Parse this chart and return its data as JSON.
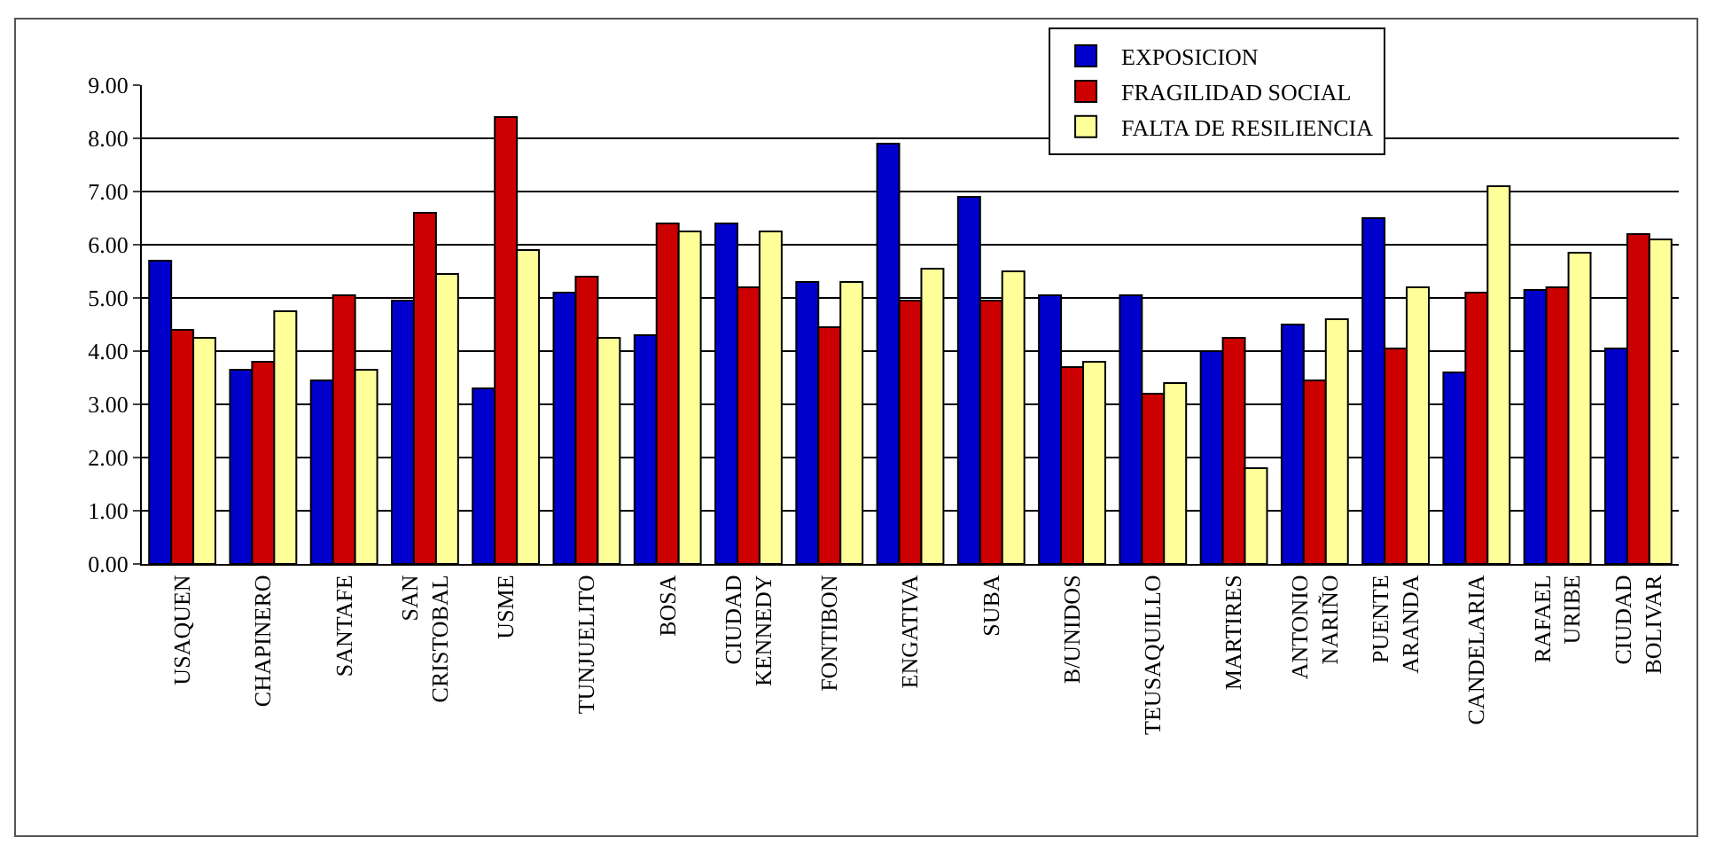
{
  "chart_data": {
    "type": "bar",
    "categories": [
      "USAQUEN",
      "CHAPINERO",
      "SANTAFE",
      "SAN\nCRISTOBAL",
      "USME",
      "TUNJUELITO",
      "BOSA",
      "CIUDAD\nKENNEDY",
      "FONTIBON",
      "ENGATIVA",
      "SUBA",
      "B/UNIDOS",
      "TEUSAQUILLO",
      "MARTIRES",
      "ANTONIO\nNARIÑO",
      "PUENTE\nARANDA",
      "CANDELARIA",
      "RAFAEL\nURIBE",
      "CIUDAD\nBOLIVAR"
    ],
    "series": [
      {
        "name": "EXPOSICION",
        "color": "#0000cc",
        "values": [
          5.7,
          3.65,
          3.45,
          4.95,
          3.3,
          5.1,
          4.3,
          6.4,
          5.3,
          7.9,
          6.9,
          5.05,
          5.05,
          4.0,
          4.5,
          6.5,
          3.6,
          5.15,
          4.05
        ]
      },
      {
        "name": "FRAGILIDAD SOCIAL",
        "color": "#cc0000",
        "values": [
          4.4,
          3.8,
          5.05,
          6.6,
          8.4,
          5.4,
          6.4,
          5.2,
          4.45,
          4.95,
          4.95,
          3.7,
          3.2,
          4.25,
          3.45,
          4.05,
          5.1,
          5.2,
          6.2
        ]
      },
      {
        "name": "FALTA DE RESILIENCIA",
        "color": "#ffff99",
        "values": [
          4.25,
          4.75,
          3.65,
          5.45,
          5.9,
          4.25,
          6.25,
          6.25,
          5.3,
          5.55,
          5.5,
          3.8,
          3.4,
          1.8,
          4.6,
          5.2,
          7.1,
          5.85,
          6.1
        ]
      }
    ],
    "ylim": [
      0,
      9
    ],
    "yticks": [
      {
        "value": 0,
        "label": "0.00"
      },
      {
        "value": 1,
        "label": "1.00"
      },
      {
        "value": 2,
        "label": "2.00"
      },
      {
        "value": 3,
        "label": "3.00"
      },
      {
        "value": 4,
        "label": "4.00"
      },
      {
        "value": 5,
        "label": "5.00"
      },
      {
        "value": 6,
        "label": "6.00"
      },
      {
        "value": 7,
        "label": "7.00"
      },
      {
        "value": 8,
        "label": "8.00"
      },
      {
        "value": 9,
        "label": "9.00"
      }
    ],
    "grid": "y",
    "legend": "top right"
  }
}
